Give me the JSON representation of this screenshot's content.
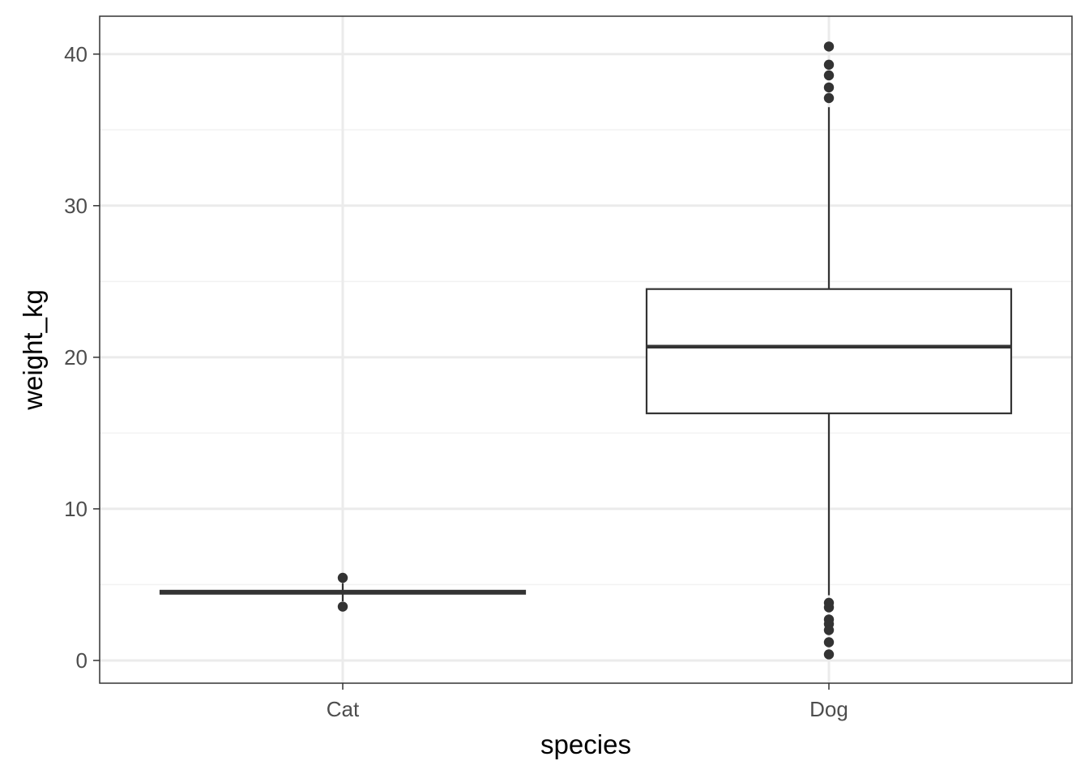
{
  "chart_data": {
    "type": "boxplot",
    "title": "",
    "xlabel": "species",
    "ylabel": "weight_kg",
    "ylim": [
      -1.5,
      42.5
    ],
    "y_ticks": [
      0,
      10,
      20,
      30,
      40
    ],
    "y_tick_labels": [
      "0",
      "10",
      "20",
      "30",
      "40"
    ],
    "y_minor_ticks": [
      5,
      15,
      25,
      35
    ],
    "grid": true,
    "legend": "none",
    "categories": [
      "Cat",
      "Dog"
    ],
    "boxes": [
      {
        "category": "Cat",
        "q1": 4.4,
        "median": 4.5,
        "q3": 4.6,
        "whisker_low": 3.9,
        "whisker_high": 5.1,
        "outliers": [
          5.45,
          3.55
        ]
      },
      {
        "category": "Dog",
        "q1": 16.3,
        "median": 20.7,
        "q3": 24.5,
        "whisker_low": 4.3,
        "whisker_high": 36.5,
        "outliers": [
          40.5,
          39.3,
          38.6,
          37.8,
          37.1,
          3.8,
          3.5,
          2.7,
          2.4,
          2.0,
          1.2,
          0.4
        ]
      }
    ],
    "colors": {
      "panel_border": "#333333",
      "grid_major": "#ebebeb",
      "grid_minor": "#f2f2f2",
      "box_stroke": "#333333",
      "box_fill": "#ffffff",
      "point": "#333333"
    }
  }
}
